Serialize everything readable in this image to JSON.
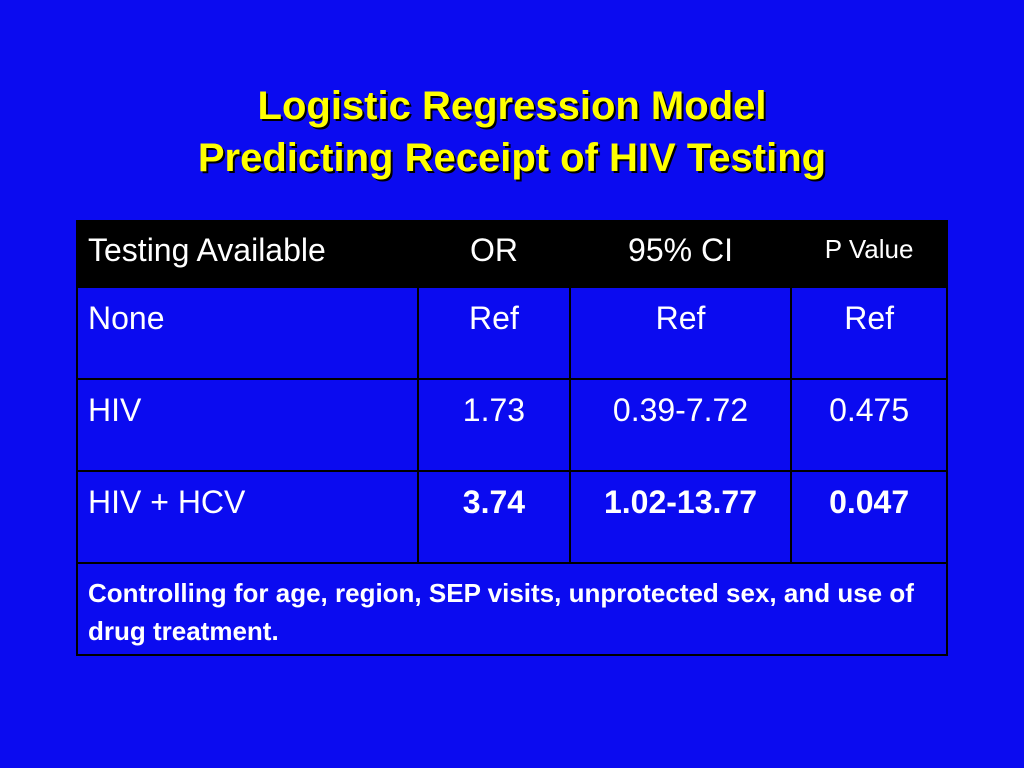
{
  "slide": {
    "title_line1": "Logistic Regression Model",
    "title_line2": "Predicting Receipt of HIV Testing"
  },
  "table": {
    "headers": [
      "Testing Available",
      "OR",
      "95% CI",
      "P Value"
    ],
    "rows": [
      {
        "label": "None",
        "or": "Ref",
        "ci": "Ref",
        "p": "Ref"
      },
      {
        "label": "HIV",
        "or": "1.73",
        "ci": "0.39-7.72",
        "p": "0.475"
      },
      {
        "label": "HIV + HCV",
        "or": "3.74",
        "ci": "1.02-13.77",
        "p": "0.047"
      }
    ],
    "footnote": "Controlling for age, region, SEP visits, unprotected sex, and use of drug treatment."
  },
  "colors": {
    "background": "#0b0bf0",
    "title": "#ffff00",
    "header_bg": "#000000",
    "text": "#ffffff"
  }
}
